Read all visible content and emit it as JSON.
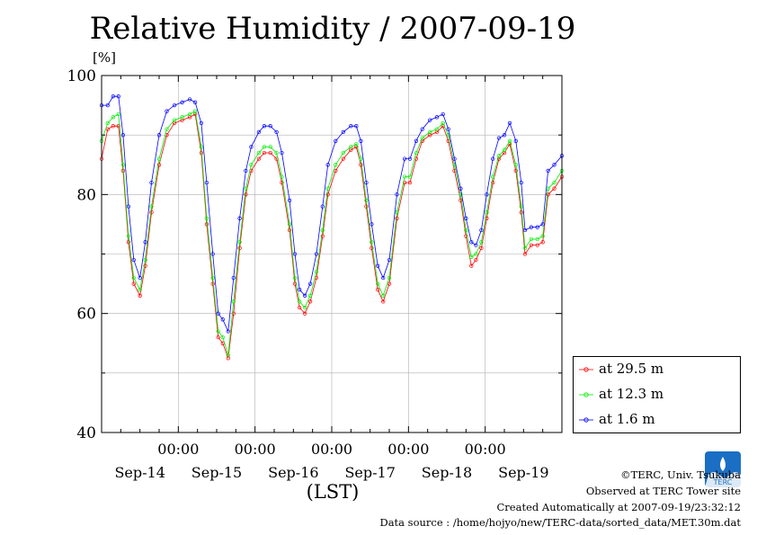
{
  "title": "Relative Humidity / 2007-09-19",
  "unit": "[%]",
  "xunit": "(LST)",
  "footer": {
    "copyright": "©TERC, Univ. Tsukuba",
    "observed": "Observed at TERC Tower site",
    "created": "Created Automatically at 2007-09-19/23:32:12",
    "source": "Data source : /home/hojyo/new/TERC-data/sorted_data/MET.30m.dat"
  },
  "logo_text": "TERC",
  "chart_data": {
    "type": "line",
    "title": "Relative Humidity / 2007-09-19",
    "ylabel": "[%]",
    "xlabel": "(LST)",
    "xlim": [
      0,
      6
    ],
    "ylim": [
      40,
      100
    ],
    "yticks": [
      40,
      60,
      80,
      100
    ],
    "ytick_labels": [
      "40",
      "60",
      "80",
      "100"
    ],
    "xticks": [
      1,
      2,
      3,
      4,
      5
    ],
    "xtick_labels": [
      "00:00",
      "00:00",
      "00:00",
      "00:00",
      "00:00"
    ],
    "day_labels": [
      "Sep-14",
      "Sep-15",
      "Sep-16",
      "Sep-17",
      "Sep-18",
      "Sep-19"
    ],
    "day_label_x": [
      0.5,
      1.5,
      2.5,
      3.5,
      4.5,
      5.5
    ],
    "grid": true,
    "legend_position": "right-bottom",
    "series": [
      {
        "name": "at 29.5 m",
        "color": "#ff0000",
        "points": [
          [
            0,
            86
          ],
          [
            0.08,
            91
          ],
          [
            0.15,
            91.5
          ],
          [
            0.22,
            91.5
          ],
          [
            0.28,
            84
          ],
          [
            0.35,
            72
          ],
          [
            0.42,
            65
          ],
          [
            0.5,
            63
          ],
          [
            0.57,
            68
          ],
          [
            0.65,
            77
          ],
          [
            0.75,
            85
          ],
          [
            0.85,
            90
          ],
          [
            0.95,
            92
          ],
          [
            1.05,
            92.5
          ],
          [
            1.15,
            93
          ],
          [
            1.22,
            93.5
          ],
          [
            1.3,
            87
          ],
          [
            1.37,
            75
          ],
          [
            1.45,
            65
          ],
          [
            1.52,
            56
          ],
          [
            1.58,
            55
          ],
          [
            1.65,
            52.5
          ],
          [
            1.72,
            60
          ],
          [
            1.8,
            71
          ],
          [
            1.88,
            80
          ],
          [
            1.95,
            84
          ],
          [
            2.05,
            86
          ],
          [
            2.12,
            87
          ],
          [
            2.2,
            87
          ],
          [
            2.28,
            86
          ],
          [
            2.35,
            82
          ],
          [
            2.45,
            74
          ],
          [
            2.52,
            65
          ],
          [
            2.58,
            61
          ],
          [
            2.65,
            60
          ],
          [
            2.72,
            62
          ],
          [
            2.8,
            66
          ],
          [
            2.88,
            73
          ],
          [
            2.95,
            80
          ],
          [
            3.05,
            84
          ],
          [
            3.15,
            86
          ],
          [
            3.25,
            87.5
          ],
          [
            3.32,
            88
          ],
          [
            3.38,
            85
          ],
          [
            3.45,
            78
          ],
          [
            3.52,
            71
          ],
          [
            3.6,
            64
          ],
          [
            3.67,
            62
          ],
          [
            3.75,
            65
          ],
          [
            3.85,
            76
          ],
          [
            3.95,
            82
          ],
          [
            4.02,
            82
          ],
          [
            4.1,
            86
          ],
          [
            4.18,
            89
          ],
          [
            4.28,
            90
          ],
          [
            4.37,
            90.5
          ],
          [
            4.45,
            91.5
          ],
          [
            4.52,
            89
          ],
          [
            4.6,
            84
          ],
          [
            4.68,
            79
          ],
          [
            4.75,
            73
          ],
          [
            4.82,
            68
          ],
          [
            4.88,
            69
          ],
          [
            4.95,
            71
          ],
          [
            5.02,
            76
          ],
          [
            5.1,
            82
          ],
          [
            5.18,
            86
          ],
          [
            5.25,
            87
          ],
          [
            5.32,
            88.5
          ],
          [
            5.4,
            84
          ],
          [
            5.47,
            77
          ],
          [
            5.52,
            70
          ],
          [
            5.6,
            71.5
          ],
          [
            5.68,
            71.5
          ],
          [
            5.75,
            72
          ],
          [
            5.82,
            80
          ],
          [
            5.9,
            81
          ],
          [
            6,
            83
          ]
        ]
      },
      {
        "name": "at 12.3 m",
        "color": "#00ee00",
        "points": [
          [
            0,
            89
          ],
          [
            0.08,
            92
          ],
          [
            0.15,
            93
          ],
          [
            0.22,
            93.5
          ],
          [
            0.28,
            85
          ],
          [
            0.35,
            73
          ],
          [
            0.42,
            66
          ],
          [
            0.5,
            64
          ],
          [
            0.57,
            69
          ],
          [
            0.65,
            78
          ],
          [
            0.75,
            86
          ],
          [
            0.85,
            91
          ],
          [
            0.95,
            92.5
          ],
          [
            1.05,
            93
          ],
          [
            1.15,
            93.5
          ],
          [
            1.22,
            94
          ],
          [
            1.3,
            88
          ],
          [
            1.37,
            76
          ],
          [
            1.45,
            66
          ],
          [
            1.52,
            57
          ],
          [
            1.58,
            56
          ],
          [
            1.65,
            53
          ],
          [
            1.72,
            62
          ],
          [
            1.8,
            72
          ],
          [
            1.88,
            81
          ],
          [
            1.95,
            85
          ],
          [
            2.05,
            87
          ],
          [
            2.12,
            88
          ],
          [
            2.2,
            88
          ],
          [
            2.28,
            87
          ],
          [
            2.35,
            83
          ],
          [
            2.45,
            75
          ],
          [
            2.52,
            66
          ],
          [
            2.58,
            62
          ],
          [
            2.65,
            61
          ],
          [
            2.72,
            63
          ],
          [
            2.8,
            67
          ],
          [
            2.88,
            74
          ],
          [
            2.95,
            81
          ],
          [
            3.05,
            85
          ],
          [
            3.15,
            87
          ],
          [
            3.25,
            88
          ],
          [
            3.32,
            88.5
          ],
          [
            3.38,
            86
          ],
          [
            3.45,
            79
          ],
          [
            3.52,
            72
          ],
          [
            3.6,
            65
          ],
          [
            3.67,
            63
          ],
          [
            3.75,
            66
          ],
          [
            3.85,
            77
          ],
          [
            3.95,
            83
          ],
          [
            4.02,
            83
          ],
          [
            4.1,
            87
          ],
          [
            4.18,
            89.5
          ],
          [
            4.28,
            90.5
          ],
          [
            4.37,
            91
          ],
          [
            4.45,
            92
          ],
          [
            4.52,
            90
          ],
          [
            4.6,
            85
          ],
          [
            4.68,
            80
          ],
          [
            4.75,
            74
          ],
          [
            4.82,
            69.5
          ],
          [
            4.88,
            70
          ],
          [
            4.95,
            72
          ],
          [
            5.02,
            77
          ],
          [
            5.1,
            83
          ],
          [
            5.18,
            86.5
          ],
          [
            5.25,
            87.5
          ],
          [
            5.32,
            89
          ],
          [
            5.4,
            85
          ],
          [
            5.47,
            78
          ],
          [
            5.52,
            71
          ],
          [
            5.6,
            72.5
          ],
          [
            5.68,
            72.5
          ],
          [
            5.75,
            73
          ],
          [
            5.82,
            81
          ],
          [
            5.9,
            82
          ],
          [
            6,
            84
          ]
        ]
      },
      {
        "name": "at 1.6 m",
        "color": "#0000ff",
        "points": [
          [
            0,
            95
          ],
          [
            0.08,
            95
          ],
          [
            0.15,
            96.5
          ],
          [
            0.22,
            96.5
          ],
          [
            0.28,
            90
          ],
          [
            0.35,
            78
          ],
          [
            0.42,
            69
          ],
          [
            0.5,
            66
          ],
          [
            0.57,
            72
          ],
          [
            0.65,
            82
          ],
          [
            0.75,
            90
          ],
          [
            0.85,
            94
          ],
          [
            0.95,
            95
          ],
          [
            1.05,
            95.5
          ],
          [
            1.15,
            96
          ],
          [
            1.22,
            95.5
          ],
          [
            1.3,
            92
          ],
          [
            1.37,
            82
          ],
          [
            1.45,
            70
          ],
          [
            1.52,
            60
          ],
          [
            1.58,
            59
          ],
          [
            1.65,
            57
          ],
          [
            1.72,
            66
          ],
          [
            1.8,
            76
          ],
          [
            1.88,
            84
          ],
          [
            1.95,
            88
          ],
          [
            2.05,
            90.5
          ],
          [
            2.12,
            91.5
          ],
          [
            2.2,
            91.5
          ],
          [
            2.28,
            90.5
          ],
          [
            2.35,
            87
          ],
          [
            2.45,
            79
          ],
          [
            2.52,
            70
          ],
          [
            2.58,
            64
          ],
          [
            2.65,
            63
          ],
          [
            2.72,
            65
          ],
          [
            2.8,
            70
          ],
          [
            2.88,
            78
          ],
          [
            2.95,
            85
          ],
          [
            3.05,
            89
          ],
          [
            3.15,
            90.5
          ],
          [
            3.25,
            91.5
          ],
          [
            3.32,
            91.5
          ],
          [
            3.38,
            89
          ],
          [
            3.45,
            82
          ],
          [
            3.52,
            75
          ],
          [
            3.6,
            68
          ],
          [
            3.67,
            66
          ],
          [
            3.75,
            69
          ],
          [
            3.85,
            80
          ],
          [
            3.95,
            86
          ],
          [
            4.02,
            86
          ],
          [
            4.1,
            89
          ],
          [
            4.18,
            91
          ],
          [
            4.28,
            92.5
          ],
          [
            4.37,
            93
          ],
          [
            4.45,
            93.5
          ],
          [
            4.52,
            91
          ],
          [
            4.6,
            86
          ],
          [
            4.68,
            81
          ],
          [
            4.75,
            76
          ],
          [
            4.82,
            72
          ],
          [
            4.88,
            71.5
          ],
          [
            4.95,
            74
          ],
          [
            5.02,
            80
          ],
          [
            5.1,
            86
          ],
          [
            5.18,
            89.5
          ],
          [
            5.25,
            90
          ],
          [
            5.32,
            92
          ],
          [
            5.4,
            89
          ],
          [
            5.47,
            82
          ],
          [
            5.52,
            74
          ],
          [
            5.6,
            74.5
          ],
          [
            5.68,
            74.5
          ],
          [
            5.75,
            75
          ],
          [
            5.82,
            84
          ],
          [
            5.9,
            85
          ],
          [
            6,
            86.5
          ]
        ]
      }
    ]
  }
}
